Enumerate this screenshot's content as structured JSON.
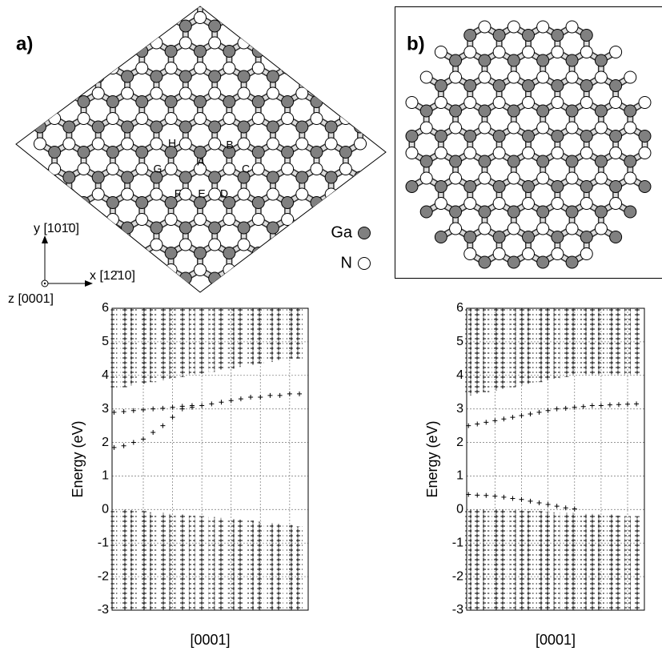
{
  "panel_a": {
    "label": "a)",
    "site_labels": [
      "A",
      "B",
      "C",
      "D",
      "E",
      "F",
      "G",
      "H"
    ],
    "axes": {
      "y": "y [101̄0]",
      "x": "x [12̄10]",
      "z": "z [0001]"
    }
  },
  "panel_b": {
    "label": "b)"
  },
  "legend": [
    {
      "name": "Ga",
      "color": "#808080"
    },
    {
      "name": "N",
      "color": "#ffffff"
    }
  ],
  "chart_data": [
    {
      "type": "band",
      "xlabel": "[0001]",
      "ylabel": "Energy (eV)",
      "x": [
        0,
        1,
        2,
        3,
        4,
        5,
        6,
        7,
        8,
        9,
        10,
        11,
        12,
        13,
        14,
        15,
        16,
        17,
        18,
        19
      ],
      "xlim": [
        -0.2,
        19.9
      ],
      "xticks": [
        3,
        6,
        9,
        12,
        15,
        18
      ],
      "ylim": [
        -3,
        6
      ],
      "yticks": [
        -3,
        -2,
        -1,
        0,
        1,
        2,
        3,
        4,
        5,
        6
      ],
      "grid": true,
      "defect_bands": [
        [
          1.85,
          1.9,
          2.0,
          2.1,
          2.3,
          2.5,
          2.75,
          3.0,
          3.05,
          3.1,
          3.15,
          3.2,
          3.25,
          3.3,
          3.35,
          3.35,
          3.4,
          3.4,
          3.45,
          3.45
        ],
        [
          2.9,
          2.92,
          2.95,
          2.97,
          3.0,
          3.02,
          3.05,
          3.08,
          3.1,
          null,
          null,
          null,
          null,
          null,
          null,
          null,
          null,
          null,
          null,
          null
        ]
      ],
      "conduction_band_bottom": [
        3.6,
        3.65,
        3.7,
        3.75,
        3.8,
        3.85,
        3.9,
        3.95,
        4.0,
        4.05,
        4.1,
        4.15,
        4.2,
        4.25,
        4.3,
        4.35,
        4.4,
        4.45,
        4.5,
        4.5
      ],
      "valence_band_top": [
        0,
        0,
        -0.02,
        -0.05,
        -0.08,
        -0.1,
        -0.12,
        -0.15,
        -0.18,
        -0.2,
        -0.22,
        -0.25,
        -0.28,
        -0.3,
        -0.33,
        -0.36,
        -0.4,
        -0.43,
        -0.46,
        -0.5
      ]
    },
    {
      "type": "band",
      "xlabel": "[0001]",
      "ylabel": "Energy (eV)",
      "x": [
        0,
        1,
        2,
        3,
        4,
        5,
        6,
        7,
        8,
        9,
        10,
        11,
        12,
        13,
        14,
        15,
        16,
        17,
        18,
        19
      ],
      "xlim": [
        -0.2,
        19.9
      ],
      "xticks": [
        3,
        6,
        9,
        12,
        15,
        18
      ],
      "ylim": [
        -3,
        6
      ],
      "yticks": [
        -3,
        -2,
        -1,
        0,
        1,
        2,
        3,
        4,
        5,
        6
      ],
      "grid": true,
      "defect_bands": [
        [
          2.5,
          2.55,
          2.6,
          2.65,
          2.7,
          2.75,
          2.8,
          2.85,
          2.9,
          2.95,
          3.0,
          3.02,
          3.05,
          3.07,
          3.1,
          3.1,
          3.12,
          3.13,
          3.14,
          3.15
        ],
        [
          0.45,
          0.43,
          0.42,
          0.4,
          0.37,
          0.33,
          0.3,
          0.25,
          0.2,
          0.15,
          0.1,
          0.05,
          0.02,
          null,
          null,
          null,
          null,
          null,
          null,
          null
        ]
      ],
      "conduction_band_bottom": [
        3.4,
        3.45,
        3.5,
        3.55,
        3.6,
        3.65,
        3.7,
        3.75,
        3.8,
        3.85,
        3.9,
        3.95,
        4.0,
        4.0,
        4.0,
        4.0,
        4.0,
        4.0,
        4.0,
        4.0
      ],
      "valence_band_top": [
        0,
        0,
        0,
        0,
        0,
        -0.02,
        -0.03,
        -0.05,
        -0.05,
        -0.07,
        -0.08,
        -0.1,
        -0.1,
        -0.12,
        -0.12,
        -0.15,
        -0.15,
        -0.18,
        -0.2,
        -0.2
      ]
    }
  ]
}
